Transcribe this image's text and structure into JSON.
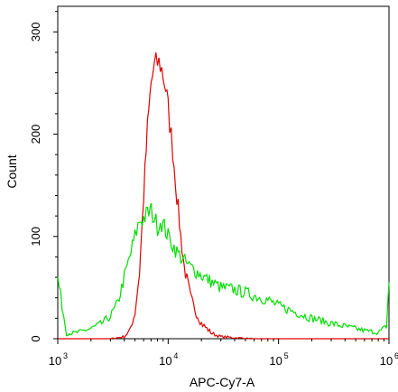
{
  "chart_data": {
    "type": "line",
    "title": "",
    "xlabel": "APC-Cy7-A",
    "ylabel": "Count",
    "x_scale": "log",
    "xlim": [
      1000,
      1000000
    ],
    "ylim": [
      0,
      325
    ],
    "x_ticks": [
      {
        "value": 1000,
        "base": "10",
        "exp": "3"
      },
      {
        "value": 10000,
        "base": "10",
        "exp": "4"
      },
      {
        "value": 100000,
        "base": "10",
        "exp": "5"
      },
      {
        "value": 1000000,
        "base": "10",
        "exp": "6"
      }
    ],
    "y_ticks": [
      {
        "value": 0,
        "label": "0"
      },
      {
        "value": 100,
        "label": "100"
      },
      {
        "value": 200,
        "label": "200"
      },
      {
        "value": 300,
        "label": "300"
      }
    ],
    "grid": false,
    "legend": "none",
    "series": [
      {
        "color": "#e00000",
        "x": [
          1000,
          3000,
          4000,
          4500,
          5000,
          5500,
          6000,
          6500,
          7000,
          7500,
          8000,
          8500,
          9000,
          9500,
          10000,
          11000,
          12000,
          13000,
          14000,
          16000,
          18000,
          20000,
          25000,
          30000,
          40000,
          60000,
          100000,
          1000000
        ],
        "y": [
          0,
          0,
          2,
          8,
          25,
          65,
          140,
          205,
          250,
          265,
          270,
          268,
          258,
          245,
          225,
          185,
          140,
          100,
          70,
          40,
          25,
          15,
          5,
          2,
          1,
          0,
          0,
          0
        ]
      },
      {
        "color": "#00dd00",
        "x": [
          1000,
          1200,
          1500,
          2000,
          2500,
          3000,
          3500,
          4000,
          4500,
          5000,
          5500,
          6000,
          6500,
          7000,
          7500,
          8000,
          8500,
          9000,
          10000,
          11000,
          12000,
          13000,
          15000,
          17000,
          20000,
          25000,
          30000,
          40000,
          50000,
          60000,
          80000,
          100000,
          150000,
          200000,
          300000,
          400000,
          600000,
          800000,
          950000,
          1000000
        ],
        "y": [
          60,
          5,
          6,
          10,
          15,
          22,
          35,
          60,
          80,
          100,
          115,
          118,
          122,
          125,
          118,
          110,
          115,
          112,
          100,
          92,
          85,
          80,
          72,
          68,
          62,
          55,
          50,
          48,
          45,
          42,
          38,
          32,
          25,
          20,
          15,
          12,
          8,
          6,
          12,
          55
        ]
      }
    ]
  }
}
